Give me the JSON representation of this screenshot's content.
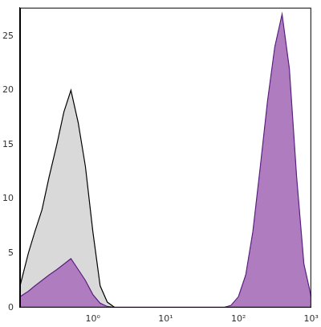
{
  "chart_data": {
    "type": "area",
    "log": "x",
    "grid": false,
    "x": [
      0.1,
      0.13,
      0.16,
      0.2,
      0.25,
      0.32,
      0.4,
      0.5,
      0.63,
      0.79,
      1,
      1.26,
      1.58,
      2,
      2.5,
      3.2,
      4,
      5,
      6.3,
      7.9,
      10,
      12.6,
      15.8,
      20,
      25,
      32,
      40,
      50,
      63,
      79,
      100,
      126,
      158,
      200,
      251,
      316,
      398,
      501,
      631,
      794,
      1000
    ],
    "series": [
      {
        "color": "#d9d9d9",
        "values": [
          2,
          5,
          7,
          9,
          12,
          15,
          18,
          20,
          17,
          13,
          7,
          2,
          0.5,
          0,
          0,
          0,
          0,
          0,
          0,
          0,
          0,
          0,
          0,
          0,
          0,
          0,
          0,
          0,
          0,
          0,
          0,
          0,
          0,
          0,
          0,
          0,
          0,
          0,
          0,
          0,
          0
        ]
      },
      {
        "color": "#b07cc0",
        "values": [
          1,
          1.5,
          2,
          2.5,
          3,
          3.5,
          4,
          4.5,
          3.5,
          2.5,
          1.2,
          0.4,
          0.1,
          0,
          0,
          0,
          0,
          0,
          0,
          0,
          0,
          0,
          0,
          0,
          0,
          0,
          0,
          0,
          0,
          0.2,
          1,
          3,
          7,
          13,
          19,
          24,
          27,
          22,
          12,
          4,
          1
        ]
      }
    ],
    "xlim": [
      0.1,
      1000
    ],
    "xticks": [
      {
        "value": 1,
        "label": "10⁰"
      },
      {
        "value": 10,
        "label": "10¹"
      },
      {
        "value": 100,
        "label": "10²"
      },
      {
        "value": 1000,
        "label": "10³"
      }
    ],
    "ylim": [
      0,
      27.6
    ],
    "yticks": [
      0,
      5,
      10,
      15,
      20,
      25
    ]
  }
}
